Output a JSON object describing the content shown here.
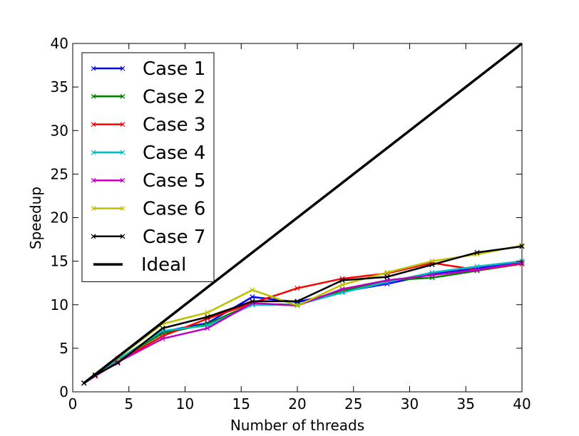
{
  "chart_data": {
    "type": "line",
    "xlabel": "Number of threads",
    "ylabel": "Speedup",
    "xlim": [
      0,
      40
    ],
    "ylim": [
      0,
      40
    ],
    "xticks": [
      0,
      5,
      10,
      15,
      20,
      25,
      30,
      35,
      40
    ],
    "yticks": [
      0,
      5,
      10,
      15,
      20,
      25,
      30,
      35,
      40
    ],
    "grid": false,
    "legend_position": "upper-left",
    "x": [
      1,
      2,
      4,
      8,
      12,
      16,
      20,
      24,
      28,
      32,
      36,
      40
    ],
    "series": [
      {
        "name": "Case 1",
        "color": "#0000ff",
        "marker": "x",
        "values": [
          1.0,
          1.9,
          3.6,
          6.9,
          7.9,
          10.9,
          10.3,
          11.5,
          12.4,
          13.5,
          14.2,
          15.0
        ]
      },
      {
        "name": "Case 2",
        "color": "#008000",
        "marker": "x",
        "values": [
          1.0,
          1.9,
          3.7,
          6.7,
          7.8,
          10.1,
          10.0,
          11.6,
          12.8,
          13.1,
          13.9,
          14.7
        ]
      },
      {
        "name": "Case 3",
        "color": "#ff0000",
        "marker": "x",
        "values": [
          1.0,
          1.9,
          3.5,
          6.4,
          8.4,
          10.2,
          11.9,
          13.0,
          13.6,
          14.8,
          14.0,
          14.7
        ]
      },
      {
        "name": "Case 4",
        "color": "#00bfbf",
        "marker": "x",
        "values": [
          1.0,
          1.9,
          3.7,
          7.0,
          7.6,
          10.0,
          10.0,
          11.4,
          12.6,
          13.7,
          14.4,
          15.0
        ]
      },
      {
        "name": "Case 5",
        "color": "#bf00bf",
        "marker": "x",
        "values": [
          1.0,
          1.8,
          3.4,
          6.1,
          7.3,
          10.2,
          9.9,
          11.8,
          12.8,
          13.4,
          14.0,
          14.8
        ]
      },
      {
        "name": "Case 6",
        "color": "#bfbf00",
        "marker": "x",
        "values": [
          1.0,
          2.0,
          3.9,
          7.8,
          9.1,
          11.7,
          9.9,
          12.3,
          13.7,
          15.0,
          15.8,
          16.8
        ]
      },
      {
        "name": "Case 7",
        "color": "#000000",
        "marker": "x",
        "values": [
          1.0,
          1.9,
          3.3,
          7.3,
          8.6,
          10.4,
          10.4,
          12.8,
          13.2,
          14.6,
          16.0,
          16.7
        ]
      },
      {
        "name": "Ideal",
        "color": "#000000",
        "marker": "none",
        "values": [
          1,
          2,
          4,
          8,
          12,
          16,
          20,
          24,
          28,
          32,
          36,
          40
        ]
      }
    ]
  }
}
